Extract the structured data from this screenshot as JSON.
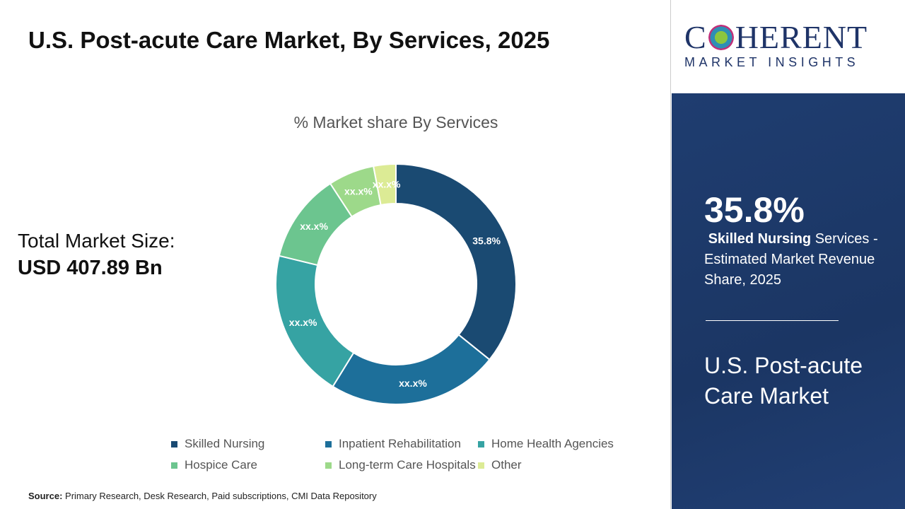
{
  "title": "U.S. Post-acute Care Market, By Services, 2025",
  "market_size": {
    "label": "Total Market Size:",
    "value": "USD 407.89 Bn"
  },
  "source": {
    "label": "Source:",
    "text": "Primary Research, Desk Research, Paid subscriptions, CMI Data Repository"
  },
  "logo": {
    "main": "COHERENT",
    "sub": "MARKET INSIGHTS"
  },
  "highlight": {
    "value": "35.8%",
    "segment": "Skilled Nursing",
    "desc": "Services - Estimated Market Revenue Share, 2025",
    "market": "U.S. Post-acute Care Market"
  },
  "colors": {
    "panel": "#1d3866"
  },
  "chart_data": {
    "type": "pie",
    "title": "% Market share By Services",
    "donut": true,
    "legend_position": "bottom",
    "categories": [
      "Skilled Nursing",
      "Inpatient Rehabilitation",
      "Home Health Agencies",
      "Hospice Care",
      "Long-term Care Hospitals",
      "Other"
    ],
    "values": [
      35.8,
      23.0,
      20.0,
      12.0,
      6.2,
      3.0
    ],
    "data_labels": [
      "35.8%",
      "xx.x%",
      "xx.x%",
      "xx.x%",
      "xx.x%",
      "xx.x%"
    ],
    "colors": [
      "#1a4a72",
      "#1d6f9a",
      "#36a3a3",
      "#6cc58f",
      "#9dd98a",
      "#dceb95"
    ]
  }
}
